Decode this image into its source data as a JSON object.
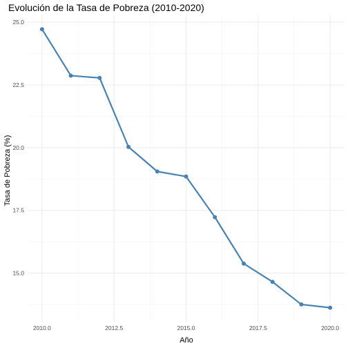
{
  "chart_data": {
    "type": "line",
    "title": "Evolución de la Tasa de Pobreza (2010-2020)",
    "xlabel": "Año",
    "ylabel": "Tasa de Pobreza (%)",
    "x": [
      2010,
      2011,
      2012,
      2013,
      2014,
      2015,
      2016,
      2017,
      2018,
      2019,
      2020
    ],
    "series": [
      {
        "values": [
          24.72,
          22.87,
          22.78,
          20.03,
          19.05,
          18.85,
          17.23,
          15.38,
          14.65,
          13.75,
          13.62
        ]
      }
    ],
    "xticks": [
      "2010.0",
      "2012.5",
      "2015.0",
      "2017.5",
      "2020.0"
    ],
    "xtick_values": [
      2010,
      2012.5,
      2015,
      2017.5,
      2020
    ],
    "yticks": [
      "15.0",
      "17.5",
      "20.0",
      "22.5",
      "25.0"
    ],
    "ytick_values": [
      15,
      17.5,
      20,
      22.5,
      25
    ],
    "xlim": [
      2009.5,
      2020.5
    ],
    "ylim": [
      13.06,
      25.28
    ],
    "grid": true,
    "legend": "none",
    "colors": {
      "line": "#4682b4",
      "point": "#4682b4"
    }
  }
}
